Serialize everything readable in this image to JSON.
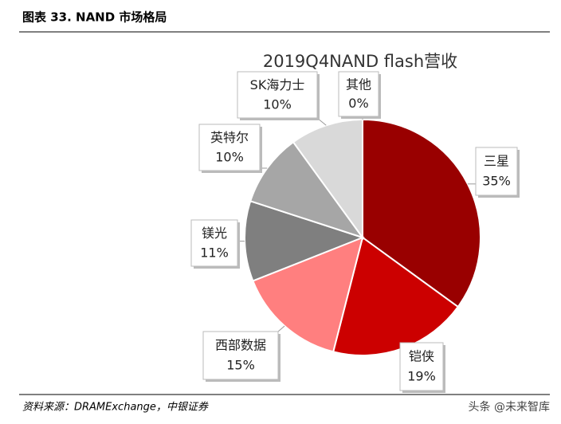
{
  "header": {
    "title": "图表 33. NAND 市场格局"
  },
  "chart_data": {
    "type": "pie",
    "title": "2019Q4NAND flash营收",
    "categories": [
      "三星",
      "铠侠",
      "西部数据",
      "镁光",
      "英特尔",
      "SK海力士",
      "其他"
    ],
    "values": [
      35,
      19,
      15,
      11,
      10,
      10,
      0
    ],
    "value_labels": [
      "35%",
      "19%",
      "15%",
      "11%",
      "10%",
      "10%",
      "0%"
    ],
    "colors": [
      "#990000",
      "#cc0000",
      "#ff7f7f",
      "#7f7f7f",
      "#a6a6a6",
      "#d9d9d9",
      "#1f3864"
    ]
  },
  "footer": {
    "source": "资料来源：DRAMExchange，中银证券",
    "watermark": "头条 @未来智库"
  }
}
